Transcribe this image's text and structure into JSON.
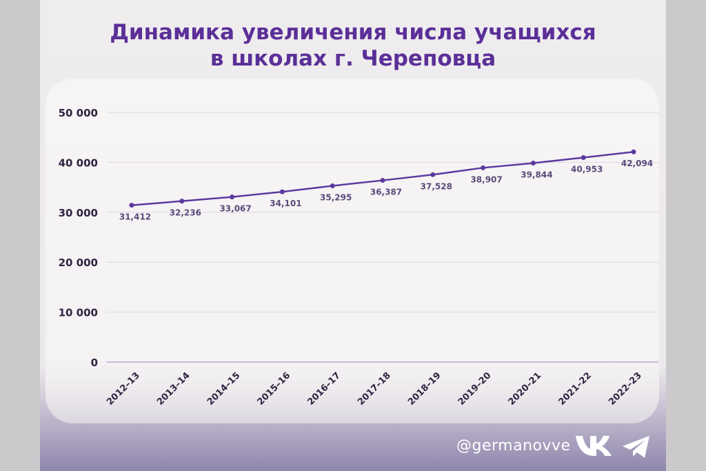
{
  "chart_data": {
    "type": "line",
    "title_lines": [
      "Динамика увеличения числа учащихся",
      "в школах г. Череповца"
    ],
    "categories": [
      "2012–13",
      "2013–14",
      "2014–15",
      "2015–16",
      "2016–17",
      "2017–18",
      "2018–19",
      "2019–20",
      "2020–21",
      "2021–22",
      "2022–23"
    ],
    "values": [
      31412,
      32236,
      33067,
      34101,
      35295,
      36387,
      37528,
      38907,
      39844,
      40953,
      42094
    ],
    "value_labels": [
      "31,412",
      "32,236",
      "33,067",
      "34,101",
      "35,295",
      "36,387",
      "37,528",
      "38,907",
      "39,844",
      "40,953",
      "42,094"
    ],
    "y_ticks": [
      0,
      10000,
      20000,
      30000,
      40000,
      50000
    ],
    "y_tick_labels": [
      "0",
      "10 000",
      "20 000",
      "30 000",
      "40 000",
      "50 000"
    ],
    "ylim": [
      0,
      50000
    ],
    "grid": true,
    "colors": {
      "line": "#5c3a9e",
      "title": "#5b2f98",
      "grid": "#dcd6e6",
      "label": "#5a4a7a"
    }
  },
  "footer": {
    "handle": "@germanovve",
    "icons": [
      "vk-icon",
      "telegram-icon"
    ]
  }
}
